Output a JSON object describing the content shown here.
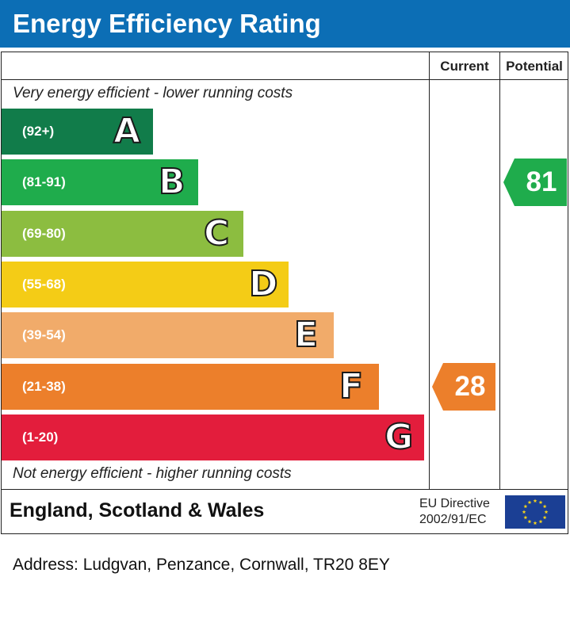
{
  "header": {
    "title": "Energy Efficiency Rating"
  },
  "columns": {
    "current": "Current",
    "potential": "Potential"
  },
  "notes": {
    "top": "Very energy efficient - lower running costs",
    "bottom": "Not energy efficient - higher running costs"
  },
  "chart_data": {
    "type": "bar",
    "bands": [
      {
        "letter": "A",
        "range": "(92+)",
        "color": "#117c4a"
      },
      {
        "letter": "B",
        "range": "(81-91)",
        "color": "#1fac4c"
      },
      {
        "letter": "C",
        "range": "(69-80)",
        "color": "#8cbd40"
      },
      {
        "letter": "D",
        "range": "(55-68)",
        "color": "#f4cc16"
      },
      {
        "letter": "E",
        "range": "(39-54)",
        "color": "#f1ab6a"
      },
      {
        "letter": "F",
        "range": "(21-38)",
        "color": "#ec7f2b"
      },
      {
        "letter": "G",
        "range": "(1-20)",
        "color": "#e31d3c"
      }
    ],
    "current": {
      "value": 28,
      "band": "F",
      "color": "#ec7f2b"
    },
    "potential": {
      "value": 81,
      "band": "B",
      "color": "#1fac4c"
    }
  },
  "footer": {
    "region": "England, Scotland & Wales",
    "directive_line1": "EU Directive",
    "directive_line2": "2002/91/EC",
    "flag_icon": "eu-flag-icon"
  },
  "address": "Address: Ludgvan, Penzance, Cornwall, TR20 8EY"
}
